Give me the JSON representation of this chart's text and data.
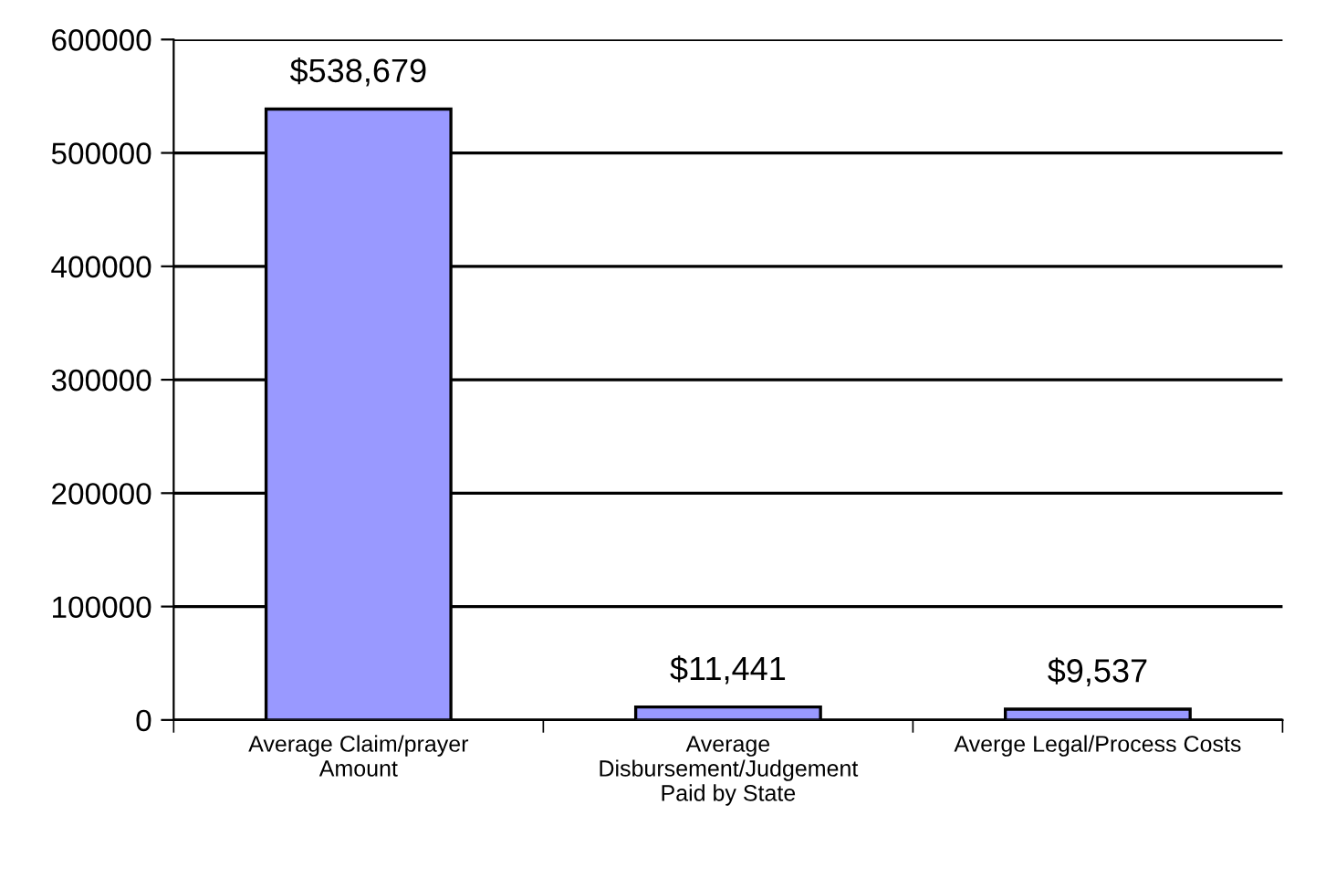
{
  "chart_data": {
    "type": "bar",
    "categories": [
      "Average Claim/prayer\nAmount",
      "Average\nDisbursement/Judgement\nPaid by State",
      "Averge Legal/Process Costs"
    ],
    "values": [
      538679,
      11441,
      9537
    ],
    "value_labels": [
      "$538,679",
      "$11,441",
      "$9,537"
    ],
    "color": "#9999ff",
    "ylim": [
      0,
      600000
    ],
    "yticks": [
      0,
      100000,
      200000,
      300000,
      400000,
      500000,
      600000
    ],
    "grid": "y",
    "legend": false
  }
}
